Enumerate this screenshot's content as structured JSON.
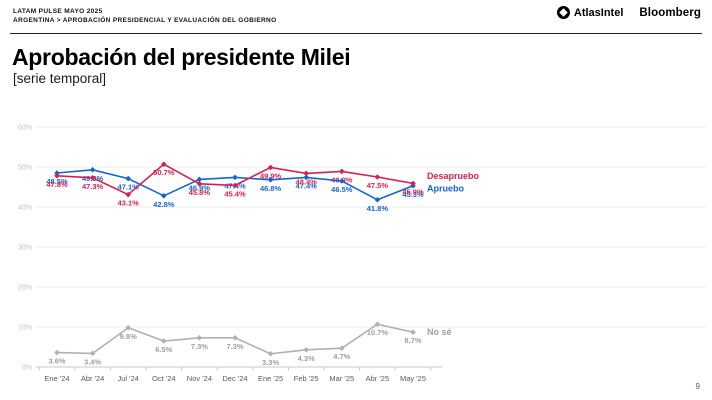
{
  "header": {
    "kicker": "LATAM PULSE MAYO 2025",
    "breadcrumb": "ARGENTINA > APROBACIÓN PRESIDENCIAL Y EVALUACIÓN DEL GOBIERNO",
    "brand_atlasintel": "AtlasIntel",
    "brand_bloomberg": "Bloomberg"
  },
  "page_number": "9",
  "chart_data": {
    "type": "line",
    "title": "Aprobación del presidente Milei",
    "subtitle": "[serie temporal]",
    "categories": [
      "Ene '24",
      "Abr '24",
      "Jul '24",
      "Oct '24",
      "Nov '24",
      "Dec '24",
      "Ene '25",
      "Feb '25",
      "Mar '25",
      "Abr '25",
      "May '25"
    ],
    "series": [
      {
        "name": "No sé",
        "color": "#b1b1b1",
        "label_color": "#9e9e9e",
        "values": [
          3.6,
          3.4,
          9.8,
          6.5,
          7.3,
          7.3,
          3.3,
          4.3,
          4.7,
          10.7,
          8.7
        ]
      },
      {
        "name": "Apruebo",
        "color": "#1464d2",
        "label_color": "#1464d2",
        "values": [
          48.5,
          49.3,
          47.1,
          42.8,
          46.9,
          47.4,
          46.8,
          47.4,
          46.5,
          41.8,
          45.3
        ]
      },
      {
        "name": "Desapruebo",
        "color": "#d6214f",
        "label_color": "#d6214f",
        "values": [
          47.8,
          47.3,
          43.1,
          50.7,
          45.8,
          45.4,
          49.9,
          48.4,
          48.9,
          47.5,
          45.9
        ]
      }
    ],
    "ylim": [
      0,
      60
    ],
    "ytick_step": 10,
    "ytick_labels": [
      "0%",
      "10%",
      "20%",
      "30%",
      "40%",
      "50%",
      "60%"
    ],
    "grid": true,
    "legend_position": "right-of-line-end",
    "value_suffix": "%"
  }
}
